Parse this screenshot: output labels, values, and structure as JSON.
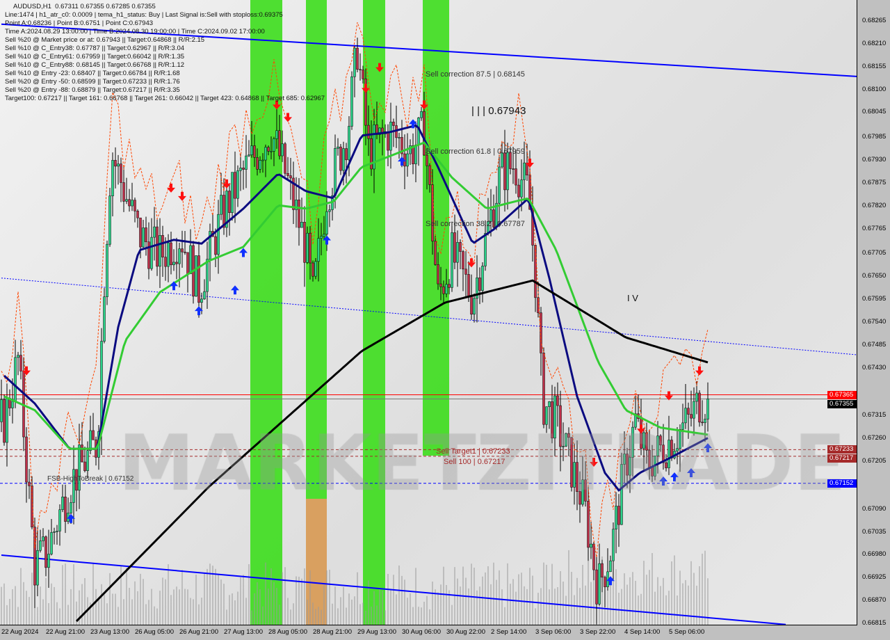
{
  "chart_data": {
    "type": "candlestick",
    "symbol_line": "AUDUSD,H1  0.67311 0.67355 0.67285 0.67355",
    "x_unit": "H1 bar index (16 bars per time label)",
    "time_labels": [
      "22 Aug 2024",
      "22 Aug 21:00",
      "23 Aug 13:00",
      "26 Aug 05:00",
      "26 Aug 21:00",
      "27 Aug 13:00",
      "28 Aug 05:00",
      "28 Aug 21:00",
      "29 Aug 13:00",
      "30 Aug 06:00",
      "30 Aug 22:00",
      "2 Sep 14:00",
      "3 Sep 06:00",
      "3 Sep 22:00",
      "4 Sep 14:00",
      "5 Sep 06:00"
    ],
    "price_labels": [
      "0.68265",
      "0.68210",
      "0.68155",
      "0.68100",
      "0.68045",
      "0.67985",
      "0.67930",
      "0.67875",
      "0.67820",
      "0.67765",
      "0.67705",
      "0.67650",
      "0.67595",
      "0.67540",
      "0.67485",
      "0.67430",
      "0.67315",
      "0.67260",
      "0.67205",
      "0.67090",
      "0.67035",
      "0.66980",
      "0.66925",
      "0.66870",
      "0.66815"
    ],
    "ylim": [
      0.6681,
      0.6829
    ],
    "close_path": [
      [
        1,
        0.673
      ],
      [
        6,
        0.6745
      ],
      [
        12,
        0.6695
      ],
      [
        14.5,
        0.66975
      ],
      [
        16,
        0.6698
      ],
      [
        24.5,
        0.6715
      ],
      [
        34.5,
        0.6725
      ],
      [
        37,
        0.6765
      ],
      [
        39.5,
        0.6795
      ],
      [
        49.5,
        0.6775
      ],
      [
        57,
        0.677
      ],
      [
        64.5,
        0.6775
      ],
      [
        71,
        0.6762
      ],
      [
        79.5,
        0.678
      ],
      [
        87,
        0.679
      ],
      [
        97,
        0.68
      ],
      [
        102,
        0.679
      ],
      [
        109.5,
        0.6772
      ],
      [
        112,
        0.676
      ],
      [
        117,
        0.6785
      ],
      [
        124.5,
        0.68
      ],
      [
        128,
        0.682
      ],
      [
        132,
        0.6795
      ],
      [
        139.5,
        0.68
      ],
      [
        147,
        0.6795
      ],
      [
        152,
        0.68
      ],
      [
        157,
        0.676
      ],
      [
        162,
        0.677
      ],
      [
        169.5,
        0.676
      ],
      [
        174.5,
        0.6775
      ],
      [
        179.5,
        0.679
      ],
      [
        184.5,
        0.6792
      ],
      [
        189.5,
        0.6785
      ],
      [
        192,
        0.6765
      ],
      [
        194.5,
        0.6735
      ],
      [
        199.5,
        0.673
      ],
      [
        204.5,
        0.672
      ],
      [
        209.5,
        0.671
      ],
      [
        214.5,
        0.669
      ],
      [
        219.5,
        0.67
      ],
      [
        224.5,
        0.672
      ],
      [
        228,
        0.673
      ],
      [
        232,
        0.672
      ],
      [
        239.5,
        0.6725
      ],
      [
        247,
        0.673
      ],
      [
        251,
        0.6735
      ],
      [
        254,
        0.67355
      ]
    ],
    "series": [
      {
        "role": "fast-ma",
        "color": "#0a0a80",
        "points": [
          [
            1,
            0.67411
          ],
          [
            12,
            0.67344
          ],
          [
            24.5,
            0.67235
          ],
          [
            34.5,
            0.67235
          ],
          [
            42,
            0.67528
          ],
          [
            49.5,
            0.67713
          ],
          [
            62,
            0.67738
          ],
          [
            72,
            0.67729
          ],
          [
            87,
            0.67813
          ],
          [
            99.5,
            0.67897
          ],
          [
            109.5,
            0.67855
          ],
          [
            119.5,
            0.67838
          ],
          [
            129.5,
            0.67989
          ],
          [
            139.5,
            0.67997
          ],
          [
            149.5,
            0.68014
          ],
          [
            157,
            0.67913
          ],
          [
            169.5,
            0.67729
          ],
          [
            177,
            0.67763
          ],
          [
            189.5,
            0.67838
          ],
          [
            197,
            0.67646
          ],
          [
            207,
            0.67361
          ],
          [
            217,
            0.67177
          ],
          [
            222,
            0.67135
          ],
          [
            229.5,
            0.67177
          ],
          [
            239.5,
            0.6721
          ],
          [
            254,
            0.67261
          ]
        ]
      },
      {
        "role": "mid-ma",
        "color": "#33cc33",
        "points": [
          [
            1,
            0.67361
          ],
          [
            12,
            0.67328
          ],
          [
            24.5,
            0.67235
          ],
          [
            34.5,
            0.67235
          ],
          [
            44.5,
            0.67495
          ],
          [
            57,
            0.67612
          ],
          [
            74.5,
            0.67687
          ],
          [
            87,
            0.67721
          ],
          [
            99.5,
            0.67821
          ],
          [
            109.5,
            0.67813
          ],
          [
            119.5,
            0.6783
          ],
          [
            129.5,
            0.67913
          ],
          [
            139.5,
            0.67939
          ],
          [
            152,
            0.67972
          ],
          [
            162,
            0.67888
          ],
          [
            174.5,
            0.67813
          ],
          [
            184.5,
            0.6783
          ],
          [
            189.5,
            0.67838
          ],
          [
            199.5,
            0.67713
          ],
          [
            214.5,
            0.67445
          ],
          [
            224.5,
            0.67328
          ],
          [
            237,
            0.67286
          ],
          [
            254,
            0.67269
          ]
        ]
      },
      {
        "role": "slow-ma",
        "color": "#000000",
        "points": [
          [
            27,
            0.6682
          ],
          [
            74.5,
            0.67143
          ],
          [
            129.5,
            0.6747
          ],
          [
            159.5,
            0.67587
          ],
          [
            191,
            0.6764
          ],
          [
            224.5,
            0.67503
          ],
          [
            254,
            0.67443
          ]
        ]
      }
    ],
    "trendlines": [
      {
        "role": "upper-channel",
        "color": "#0000ff",
        "style": "solid",
        "points": [
          [
            0,
            0.68257
          ],
          [
            308,
            0.68131
          ]
        ]
      },
      {
        "role": "lower-channel",
        "color": "#0000ff",
        "style": "solid",
        "points": [
          [
            0,
            0.66979
          ],
          [
            282,
            0.66812
          ]
        ]
      },
      {
        "role": "mid-channel",
        "color": "#0000ff",
        "style": "dotted",
        "points": [
          [
            0,
            0.67646
          ],
          [
            308,
            0.67461
          ]
        ]
      }
    ],
    "hlines": [
      {
        "price": 0.67365,
        "color": "#ff0000",
        "label": "0.67365"
      },
      {
        "price": 0.67355,
        "color": "#000000",
        "label": "0.67355"
      },
      {
        "price": 0.67233,
        "color": "#a52a2a",
        "label": "0.67233"
      },
      {
        "price": 0.67217,
        "color": "#a52a2a",
        "label": "0.67217"
      },
      {
        "price": 0.67152,
        "color": "#0000ff",
        "label": "0.67152"
      }
    ],
    "zones": [
      {
        "from": 89.5,
        "to": 101,
        "color": "#33dd11"
      },
      {
        "from": 109.5,
        "to": 117,
        "color": "#33dd11",
        "lower_color": "#d9a060"
      },
      {
        "from": 130,
        "to": 138,
        "color": "#33dd11"
      },
      {
        "from": 151.5,
        "to": 161,
        "color": "#33dd11"
      }
    ],
    "signals": [
      {
        "bar": 9,
        "price": 0.6742,
        "dir": "sell"
      },
      {
        "bar": 61,
        "price": 0.6786,
        "dir": "sell"
      },
      {
        "bar": 65,
        "price": 0.6784,
        "dir": "sell"
      },
      {
        "bar": 81,
        "price": 0.6787,
        "dir": "sell"
      },
      {
        "bar": 99,
        "price": 0.6806,
        "dir": "sell"
      },
      {
        "bar": 103,
        "price": 0.6803,
        "dir": "sell"
      },
      {
        "bar": 136,
        "price": 0.6815,
        "dir": "sell"
      },
      {
        "bar": 131,
        "price": 0.681,
        "dir": "sell"
      },
      {
        "bar": 152,
        "price": 0.6806,
        "dir": "sell"
      },
      {
        "bar": 190,
        "price": 0.6792,
        "dir": "sell"
      },
      {
        "bar": 169,
        "price": 0.6768,
        "dir": "sell"
      },
      {
        "bar": 213,
        "price": 0.672,
        "dir": "sell"
      },
      {
        "bar": 230,
        "price": 0.6728,
        "dir": "sell"
      },
      {
        "bar": 240,
        "price": 0.6736,
        "dir": "sell"
      },
      {
        "bar": 251,
        "price": 0.6742,
        "dir": "sell"
      },
      {
        "bar": 25,
        "price": 0.6707,
        "dir": "buy"
      },
      {
        "bar": 62,
        "price": 0.6763,
        "dir": "buy"
      },
      {
        "bar": 71,
        "price": 0.6757,
        "dir": "buy"
      },
      {
        "bar": 84,
        "price": 0.6762,
        "dir": "buy"
      },
      {
        "bar": 87,
        "price": 0.6771,
        "dir": "buy"
      },
      {
        "bar": 117,
        "price": 0.6774,
        "dir": "buy"
      },
      {
        "bar": 148,
        "price": 0.6802,
        "dir": "buy"
      },
      {
        "bar": 144,
        "price": 0.6793,
        "dir": "buy"
      },
      {
        "bar": 219,
        "price": 0.6692,
        "dir": "buy"
      },
      {
        "bar": 238,
        "price": 0.6716,
        "dir": "buy"
      },
      {
        "bar": 242,
        "price": 0.6717,
        "dir": "buy"
      },
      {
        "bar": 248,
        "price": 0.6718,
        "dir": "buy"
      },
      {
        "bar": 254,
        "price": 0.6724,
        "dir": "buy"
      }
    ],
    "grid": false
  },
  "info_lines": [
    "AUDUSD,H1  0.67311 0.67355 0.67285 0.67355",
    "Line:1474 | h1_atr_c0: 0.0009 | tema_h1_status: Buy | Last Signal is:Sell with stoploss:0.69375",
    "Point A:0.68236 | Point B:0.6751 | Point C:0.67943",
    "Time A:2024.08.29 13:00:00 | Time B:2024.08.30 19:00:00 | Time C:2024.09.02 17:00:00",
    "Sell %20 @ Market price or at: 0.67943 || Target:0.64868 || R/R:2.15",
    "Sell %10 @ C_Entry38: 0.67787 || Target:0.62967 || R/R:3.04",
    "Sell %10 @ C_Entry61: 0.67959 || Target:0.66042 || R/R:1.35",
    "Sell %10 @ C_Entry88: 0.68145 || Target:0.66768 || R/R:1.12",
    "Sell %10 @ Entry -23: 0.68407 || Target:0.66784 || R/R:1.68",
    "Sell %20 @ Entry -50: 0.68599 || Target:0.67233 || R/R:1.76",
    "Sell %20 @ Entry -88: 0.68879 || Target:0.67217 || R/R:3.35",
    "Target100: 0.67217 || Target 161: 0.66768 || Target 261: 0.66042 || Target 423: 0.64868 || Target 685: 0.62967"
  ],
  "annotations": {
    "corr875": "Sell correction 87.5 | 0.68145",
    "corr618": "Sell correction 61.8 | 0.67959",
    "corr382": "Sell correction 38.2 | 0.67787",
    "point_c": "| | | 0.67943",
    "wave_iv": "I V",
    "sell_target1": "Sell Target1 | 0.67233",
    "sell_100": "Sell 100 | 0.67217",
    "fsb": "FSB-HighToBreak | 0.67152"
  },
  "watermark": "MARKETZITRADE"
}
